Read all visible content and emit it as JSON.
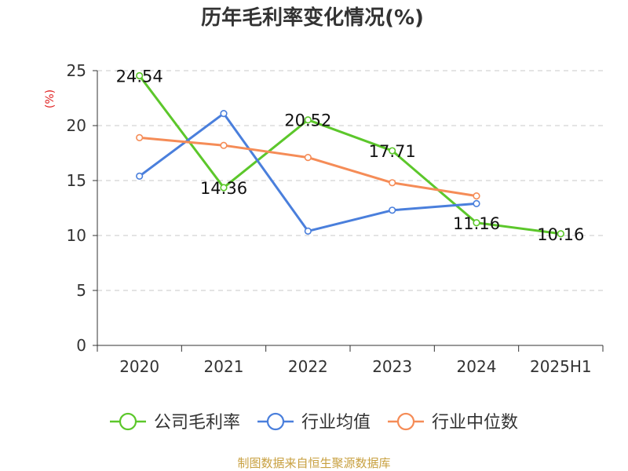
{
  "chart_data": {
    "type": "line",
    "title": "历年毛利率变化情况(%)",
    "ylabel": "(%)",
    "xlabel": "",
    "categories": [
      "2020",
      "2021",
      "2022",
      "2023",
      "2024",
      "2025H1"
    ],
    "ylim": [
      0,
      25
    ],
    "yticks": [
      0,
      5,
      10,
      15,
      20,
      25
    ],
    "grid": true,
    "legend_position": "bottom",
    "series": [
      {
        "name": "公司毛利率",
        "color": "#5cc72b",
        "values": [
          24.54,
          14.36,
          20.52,
          17.71,
          11.16,
          10.16
        ],
        "show_labels": true
      },
      {
        "name": "行业均值",
        "color": "#4a7fdc",
        "values": [
          15.4,
          21.1,
          10.4,
          12.3,
          12.9,
          null
        ],
        "show_labels": false
      },
      {
        "name": "行业中位数",
        "color": "#f58c57",
        "values": [
          18.9,
          18.2,
          17.1,
          14.8,
          13.6,
          null
        ],
        "show_labels": false
      }
    ],
    "source": "制图数据来自恒生聚源数据库"
  }
}
